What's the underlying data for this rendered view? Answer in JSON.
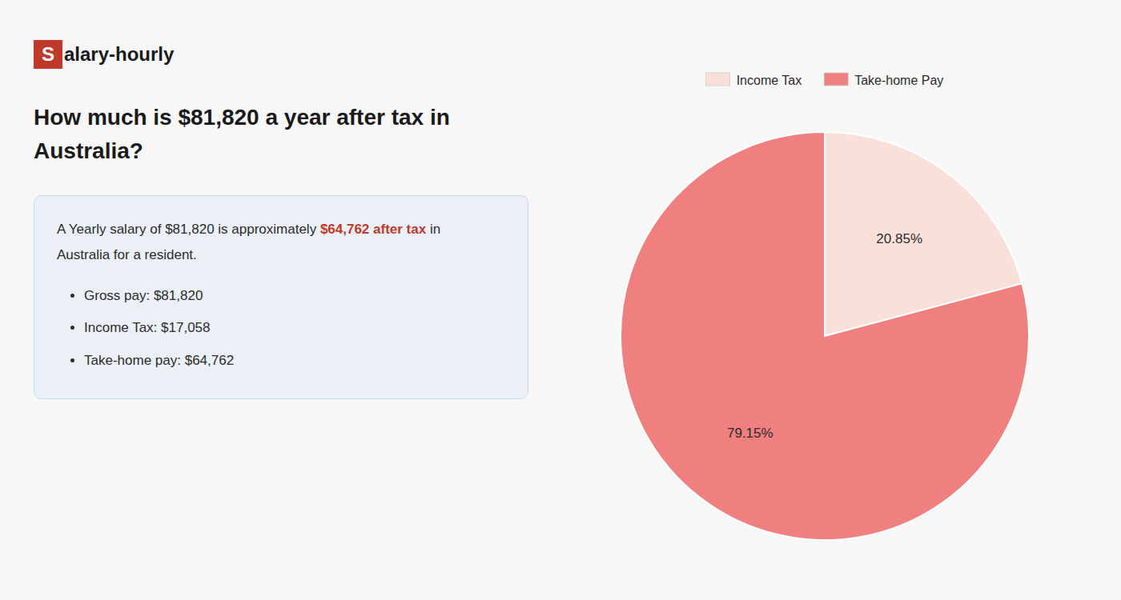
{
  "chart_data": {
    "type": "pie",
    "title": "How much is $81,820 a year after tax in\nAustralia?",
    "annotations": [
      "S",
      "alary-hourly",
      "A Yearly salary of $81,820 is approximately ",
      "$64,762 after tax",
      " in",
      "Australia for a resident.",
      "Gross pay: $81,820",
      "Income Tax: $17,058",
      "Take-home pay: $64,762"
    ],
    "categories": [
      "Income Tax",
      "Take-home Pay"
    ],
    "values": [
      20.85,
      79.15
    ],
    "value_labels": [
      "20.85%",
      "79.15%"
    ],
    "colors": [
      "#f9e0d9",
      "#f08080"
    ],
    "data_labels": true,
    "legend": "top"
  }
}
